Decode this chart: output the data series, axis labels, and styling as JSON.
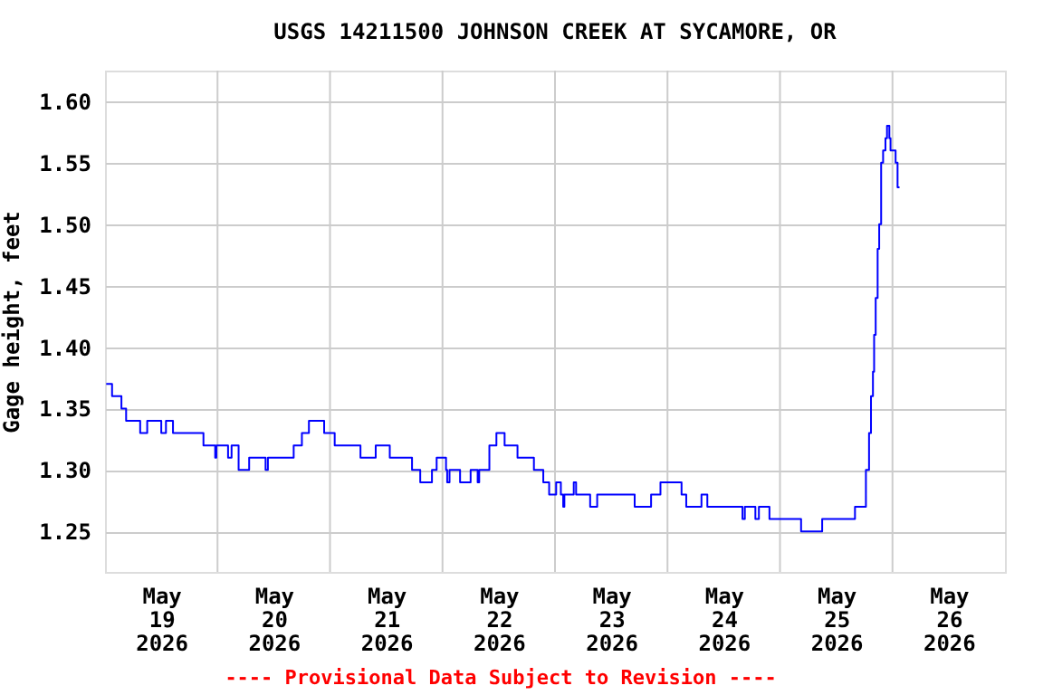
{
  "chart_data": {
    "type": "step",
    "title": "USGS 14211500 JOHNSON CREEK AT SYCAMORE, OR",
    "ylabel": "Gage height, feet",
    "annotations": [
      "---- Provisional Data Subject to Revision ----"
    ],
    "xlim": [
      "2026-05-19T00:00",
      "2026-05-27T00:00"
    ],
    "xticks": [
      {
        "value": "2026-05-19T12:00",
        "label": "May 19 2026"
      },
      {
        "value": "2026-05-20T12:00",
        "label": "May 20 2026"
      },
      {
        "value": "2026-05-21T12:00",
        "label": "May 21 2026"
      },
      {
        "value": "2026-05-22T12:00",
        "label": "May 22 2026"
      },
      {
        "value": "2026-05-23T12:00",
        "label": "May 23 2026"
      },
      {
        "value": "2026-05-24T12:00",
        "label": "May 24 2026"
      },
      {
        "value": "2026-05-25T12:00",
        "label": "May 25 2026"
      },
      {
        "value": "2026-05-26T12:00",
        "label": "May 26 2026"
      },
      {
        "value": "2026-05-20T00:00",
        "label": null
      },
      {
        "value": "2026-05-21T00:00",
        "label": null
      },
      {
        "value": "2026-05-22T00:00",
        "label": null
      },
      {
        "value": "2026-05-23T00:00",
        "label": null
      },
      {
        "value": "2026-05-24T00:00",
        "label": null
      },
      {
        "value": "2026-05-25T00:00",
        "label": null
      },
      {
        "value": "2026-05-26T00:00",
        "label": null
      }
    ],
    "ylim": [
      1.217,
      1.625
    ],
    "yticks": [
      {
        "value": 1.25,
        "label": "1.25"
      },
      {
        "value": 1.3,
        "label": "1.30"
      },
      {
        "value": 1.35,
        "label": "1.35"
      },
      {
        "value": 1.4,
        "label": "1.40"
      },
      {
        "value": 1.45,
        "label": "1.45"
      },
      {
        "value": 1.5,
        "label": "1.50"
      },
      {
        "value": 1.55,
        "label": "1.55"
      },
      {
        "value": 1.6,
        "label": "1.60"
      }
    ],
    "grid": true,
    "marker": "none",
    "line_style": "solid",
    "series": [
      {
        "color": "#0000ff",
        "x": [
          "2026-05-19T00:15",
          "2026-05-19T01:30",
          "2026-05-19T03:30",
          "2026-05-19T04:30",
          "2026-05-19T07:30",
          "2026-05-19T09:00",
          "2026-05-19T12:00",
          "2026-05-19T13:00",
          "2026-05-19T14:30",
          "2026-05-19T21:00",
          "2026-05-19T23:30",
          "2026-05-19T23:45",
          "2026-05-20T02:15",
          "2026-05-20T03:00",
          "2026-05-20T04:30",
          "2026-05-20T06:45",
          "2026-05-20T10:15",
          "2026-05-20T10:45",
          "2026-05-20T16:15",
          "2026-05-20T18:00",
          "2026-05-20T19:30",
          "2026-05-20T22:45",
          "2026-05-21T01:00",
          "2026-05-21T06:30",
          "2026-05-21T09:45",
          "2026-05-21T12:45",
          "2026-05-21T17:30",
          "2026-05-21T19:15",
          "2026-05-21T21:45",
          "2026-05-21T22:45",
          "2026-05-22T00:45",
          "2026-05-22T01:00",
          "2026-05-22T01:30",
          "2026-05-22T03:45",
          "2026-05-22T06:00",
          "2026-05-22T07:30",
          "2026-05-22T07:50",
          "2026-05-22T10:00",
          "2026-05-22T11:30",
          "2026-05-22T13:15",
          "2026-05-22T16:00",
          "2026-05-22T19:30",
          "2026-05-22T21:30",
          "2026-05-22T22:45",
          "2026-05-23T00:15",
          "2026-05-23T01:15",
          "2026-05-23T01:45",
          "2026-05-23T02:00",
          "2026-05-23T04:00",
          "2026-05-23T04:30",
          "2026-05-23T07:30",
          "2026-05-23T09:00",
          "2026-05-23T17:00",
          "2026-05-23T20:30",
          "2026-05-23T22:30",
          "2026-05-24T03:00",
          "2026-05-24T04:00",
          "2026-05-24T07:15",
          "2026-05-24T08:30",
          "2026-05-24T16:00",
          "2026-05-24T16:30",
          "2026-05-24T18:45",
          "2026-05-24T19:30",
          "2026-05-24T21:45",
          "2026-05-25T04:30",
          "2026-05-25T09:00",
          "2026-05-25T16:00",
          "2026-05-25T18:20",
          "2026-05-25T19:00",
          "2026-05-25T19:25",
          "2026-05-25T19:50",
          "2026-05-25T20:05",
          "2026-05-25T20:25",
          "2026-05-25T20:50",
          "2026-05-25T21:10",
          "2026-05-25T21:35",
          "2026-05-25T22:00",
          "2026-05-25T22:30",
          "2026-05-25T22:50",
          "2026-05-25T23:20",
          "2026-05-25T23:35",
          "2026-05-26T00:40",
          "2026-05-26T01:05",
          "2026-05-26T01:30"
        ],
        "values": [
          1.37,
          1.36,
          1.35,
          1.34,
          1.33,
          1.34,
          1.33,
          1.34,
          1.33,
          1.32,
          1.31,
          1.32,
          1.31,
          1.32,
          1.3,
          1.31,
          1.3,
          1.31,
          1.32,
          1.33,
          1.34,
          1.33,
          1.32,
          1.31,
          1.32,
          1.31,
          1.3,
          1.29,
          1.3,
          1.31,
          1.3,
          1.29,
          1.3,
          1.29,
          1.3,
          1.29,
          1.3,
          1.32,
          1.33,
          1.32,
          1.31,
          1.3,
          1.29,
          1.28,
          1.29,
          1.28,
          1.27,
          1.28,
          1.29,
          1.28,
          1.27,
          1.28,
          1.27,
          1.28,
          1.29,
          1.28,
          1.27,
          1.28,
          1.27,
          1.26,
          1.27,
          1.26,
          1.27,
          1.26,
          1.25,
          1.26,
          1.27,
          1.3,
          1.33,
          1.36,
          1.38,
          1.41,
          1.44,
          1.48,
          1.5,
          1.55,
          1.56,
          1.57,
          1.58,
          1.57,
          1.56,
          1.55,
          1.53,
          1.53
        ]
      }
    ]
  }
}
